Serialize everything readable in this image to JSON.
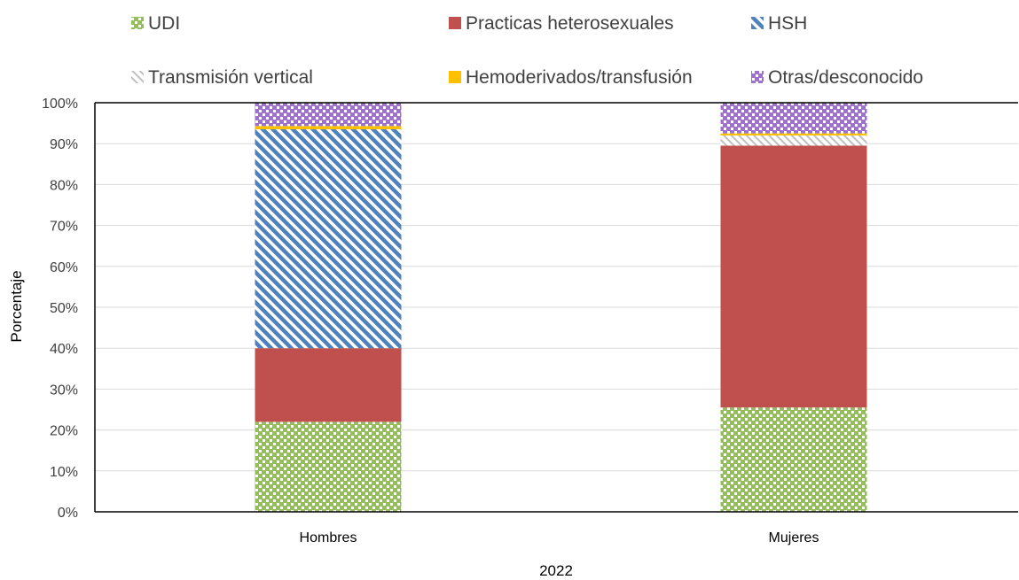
{
  "chart_data": {
    "type": "bar",
    "stacked": true,
    "categories": [
      "Hombres",
      "Mujeres"
    ],
    "series": [
      {
        "name": "UDI",
        "values": [
          22,
          25.5
        ],
        "color": "#92c055",
        "pattern": "checker"
      },
      {
        "name": "Practicas heterosexuales",
        "values": [
          18,
          64
        ],
        "color": "#c0504d",
        "pattern": "solid"
      },
      {
        "name": "HSH",
        "values": [
          53.5,
          0
        ],
        "color": "#4f81bd",
        "pattern": "diagonal"
      },
      {
        "name": "Transmisión vertical",
        "values": [
          0,
          2.5
        ],
        "color": "#bfbfbf",
        "pattern": "light-diagonal"
      },
      {
        "name": "Hemoderivados/transfusión",
        "values": [
          0.8,
          0.5
        ],
        "color": "#ffc000",
        "pattern": "solid"
      },
      {
        "name": "Otras/desconocido",
        "values": [
          5.7,
          7.5
        ],
        "color": "#a16fd0",
        "pattern": "checker"
      }
    ],
    "yticks": [
      "0%",
      "10%",
      "20%",
      "30%",
      "40%",
      "50%",
      "60%",
      "70%",
      "80%",
      "90%",
      "100%"
    ],
    "ylim": [
      0,
      100
    ],
    "ylabel": "Porcentaje",
    "xlabel": "2022",
    "grid": true,
    "legend_position": "top"
  }
}
